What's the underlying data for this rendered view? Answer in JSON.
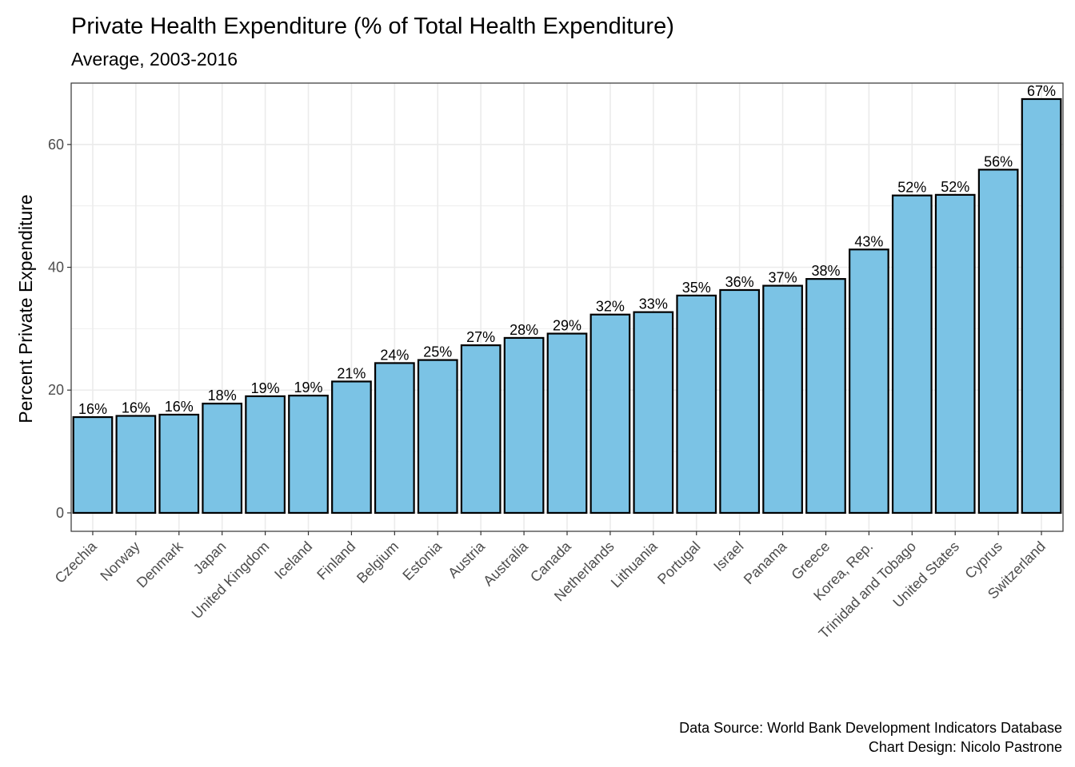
{
  "chart_data": {
    "type": "bar",
    "title": "Private Health Expenditure (% of Total Health Expenditure)",
    "subtitle": "Average, 2003-2016",
    "xlabel": "",
    "ylabel": "Percent Private Expenditure",
    "ylim": [
      -3,
      70
    ],
    "yticks": [
      0,
      20,
      40,
      60
    ],
    "grid": true,
    "bar_fill": "#7bc3e5",
    "bar_outline": "#000000",
    "categories": [
      "Czechia",
      "Norway",
      "Denmark",
      "Japan",
      "United Kingdom",
      "Iceland",
      "Finland",
      "Belgium",
      "Estonia",
      "Austria",
      "Australia",
      "Canada",
      "Netherlands",
      "Lithuania",
      "Portugal",
      "Israel",
      "Panama",
      "Greece",
      "Korea, Rep.",
      "Trinidad and Tobago",
      "United States",
      "Cyprus",
      "Switzerland"
    ],
    "values": [
      15.6,
      15.8,
      16.0,
      17.8,
      19.0,
      19.1,
      21.4,
      24.4,
      24.9,
      27.3,
      28.5,
      29.2,
      32.3,
      32.7,
      35.4,
      36.3,
      37.0,
      38.1,
      42.9,
      51.7,
      51.8,
      55.9,
      67.4
    ],
    "labels": [
      "16%",
      "16%",
      "16%",
      "18%",
      "19%",
      "19%",
      "21%",
      "24%",
      "25%",
      "27%",
      "28%",
      "29%",
      "32%",
      "33%",
      "35%",
      "36%",
      "37%",
      "38%",
      "43%",
      "52%",
      "52%",
      "56%",
      "67%"
    ],
    "caption": [
      "Data Source: World Bank Development Indicators Database",
      "Chart Design: Nicolo Pastrone"
    ]
  }
}
